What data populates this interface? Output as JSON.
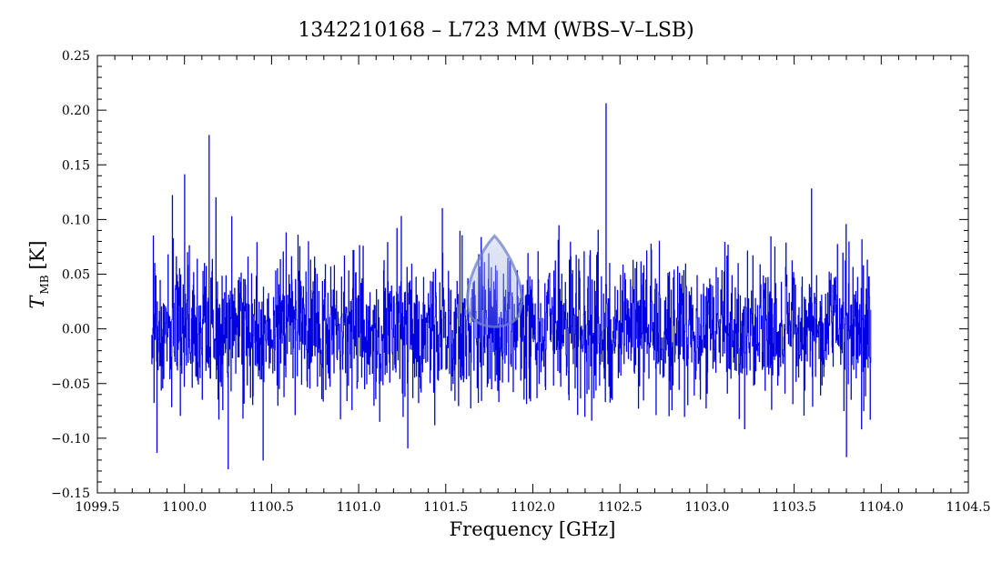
{
  "chart_data": {
    "type": "line",
    "title": "1342210168 – L723 MM (WBS–V–LSB)",
    "xlabel": "Frequency [GHz]",
    "ylabel": {
      "main": "T",
      "sub": "MB",
      "unit": "[K]"
    },
    "xlim": [
      1099.5,
      1104.5
    ],
    "ylim": [
      -0.15,
      0.25
    ],
    "x_ticks": [
      1099.5,
      1100.0,
      1100.5,
      1101.0,
      1101.5,
      1102.0,
      1102.5,
      1103.0,
      1103.5,
      1104.0,
      1104.5
    ],
    "x_tick_labels": [
      "1099.5",
      "1100.0",
      "1100.5",
      "1101.0",
      "1101.5",
      "1102.0",
      "1102.5",
      "1103.0",
      "1103.5",
      "1104.0",
      "1104.5"
    ],
    "y_ticks": [
      -0.15,
      -0.1,
      -0.05,
      0.0,
      0.05,
      0.1,
      0.15,
      0.2,
      0.25
    ],
    "y_tick_labels": [
      "−0.15",
      "−0.10",
      "−0.05",
      "0.00",
      "0.05",
      "0.10",
      "0.15",
      "0.20",
      "0.25"
    ],
    "grid": false,
    "series": [
      {
        "color": "#0000e0",
        "x_range": [
          1099.81,
          1103.94
        ],
        "n_points": 2000,
        "noise_sigma": 0.035,
        "baseline": 0.0,
        "notable_points": [
          {
            "x": 1099.82,
            "y": 0.085
          },
          {
            "x": 1099.84,
            "y": -0.113
          },
          {
            "x": 1099.93,
            "y": 0.122
          },
          {
            "x": 1100.0,
            "y": 0.141
          },
          {
            "x": 1100.14,
            "y": 0.177
          },
          {
            "x": 1100.18,
            "y": 0.12
          },
          {
            "x": 1100.25,
            "y": -0.128
          },
          {
            "x": 1100.45,
            "y": -0.12
          },
          {
            "x": 1101.28,
            "y": -0.109
          },
          {
            "x": 1101.48,
            "y": 0.11
          },
          {
            "x": 1102.42,
            "y": 0.206
          },
          {
            "x": 1103.6,
            "y": 0.128
          },
          {
            "x": 1103.8,
            "y": -0.117
          }
        ]
      }
    ],
    "overlay": {
      "name": "line-feature-marker",
      "center_x": 1101.78,
      "peak_y": 0.085,
      "base_y": 0.0,
      "half_width_x": 0.2,
      "color": "#6f82c4"
    }
  }
}
